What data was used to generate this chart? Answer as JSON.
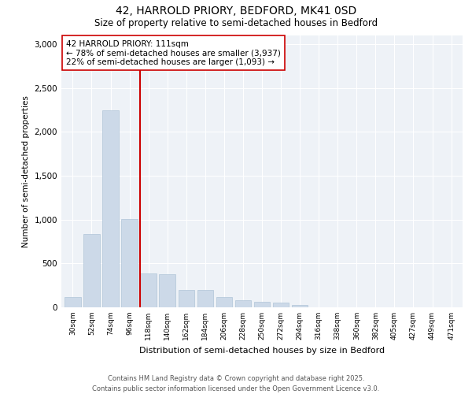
{
  "title_line1": "42, HARROLD PRIORY, BEDFORD, MK41 0SD",
  "title_line2": "Size of property relative to semi-detached houses in Bedford",
  "xlabel": "Distribution of semi-detached houses by size in Bedford",
  "ylabel": "Number of semi-detached properties",
  "bar_color": "#ccd9e8",
  "bar_edge_color": "#b0c4d8",
  "vline_color": "#cc0000",
  "annotation_title": "42 HARROLD PRIORY: 111sqm",
  "annotation_line2": "← 78% of semi-detached houses are smaller (3,937)",
  "annotation_line3": "22% of semi-detached houses are larger (1,093) →",
  "categories": [
    "30sqm",
    "52sqm",
    "74sqm",
    "96sqm",
    "118sqm",
    "140sqm",
    "162sqm",
    "184sqm",
    "206sqm",
    "228sqm",
    "250sqm",
    "272sqm",
    "294sqm",
    "316sqm",
    "338sqm",
    "360sqm",
    "382sqm",
    "405sqm",
    "427sqm",
    "449sqm",
    "471sqm"
  ],
  "values": [
    120,
    840,
    2250,
    1010,
    390,
    380,
    200,
    200,
    115,
    85,
    65,
    50,
    25,
    4,
    4,
    2,
    1,
    1,
    1,
    1,
    1
  ],
  "ylim": [
    0,
    3100
  ],
  "yticks": [
    0,
    500,
    1000,
    1500,
    2000,
    2500,
    3000
  ],
  "background_color": "#eef2f7",
  "footer_line1": "Contains HM Land Registry data © Crown copyright and database right 2025.",
  "footer_line2": "Contains public sector information licensed under the Open Government Licence v3.0."
}
